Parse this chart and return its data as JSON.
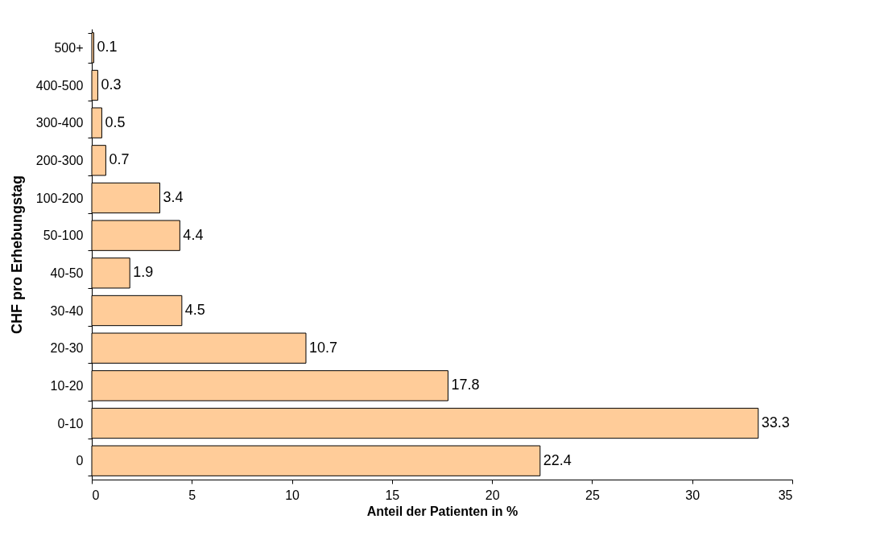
{
  "chart_data": {
    "type": "bar",
    "orientation": "horizontal",
    "xlabel": "Anteil der Patienten in %",
    "ylabel": "CHF pro Erhebungstag",
    "categories": [
      "500+",
      "400-500",
      "300-400",
      "200-300",
      "100-200",
      "50-100",
      "40-50",
      "30-40",
      "20-30",
      "10-20",
      "0-10",
      "0"
    ],
    "values": [
      0.1,
      0.3,
      0.5,
      0.7,
      3.4,
      4.4,
      1.9,
      4.5,
      10.7,
      17.8,
      33.3,
      22.4
    ],
    "color": "#ffcc99",
    "xlim": [
      0,
      35
    ],
    "xticks": [
      0,
      5,
      10,
      15,
      20,
      25,
      30,
      35
    ],
    "data_labels": true,
    "grid": false
  }
}
